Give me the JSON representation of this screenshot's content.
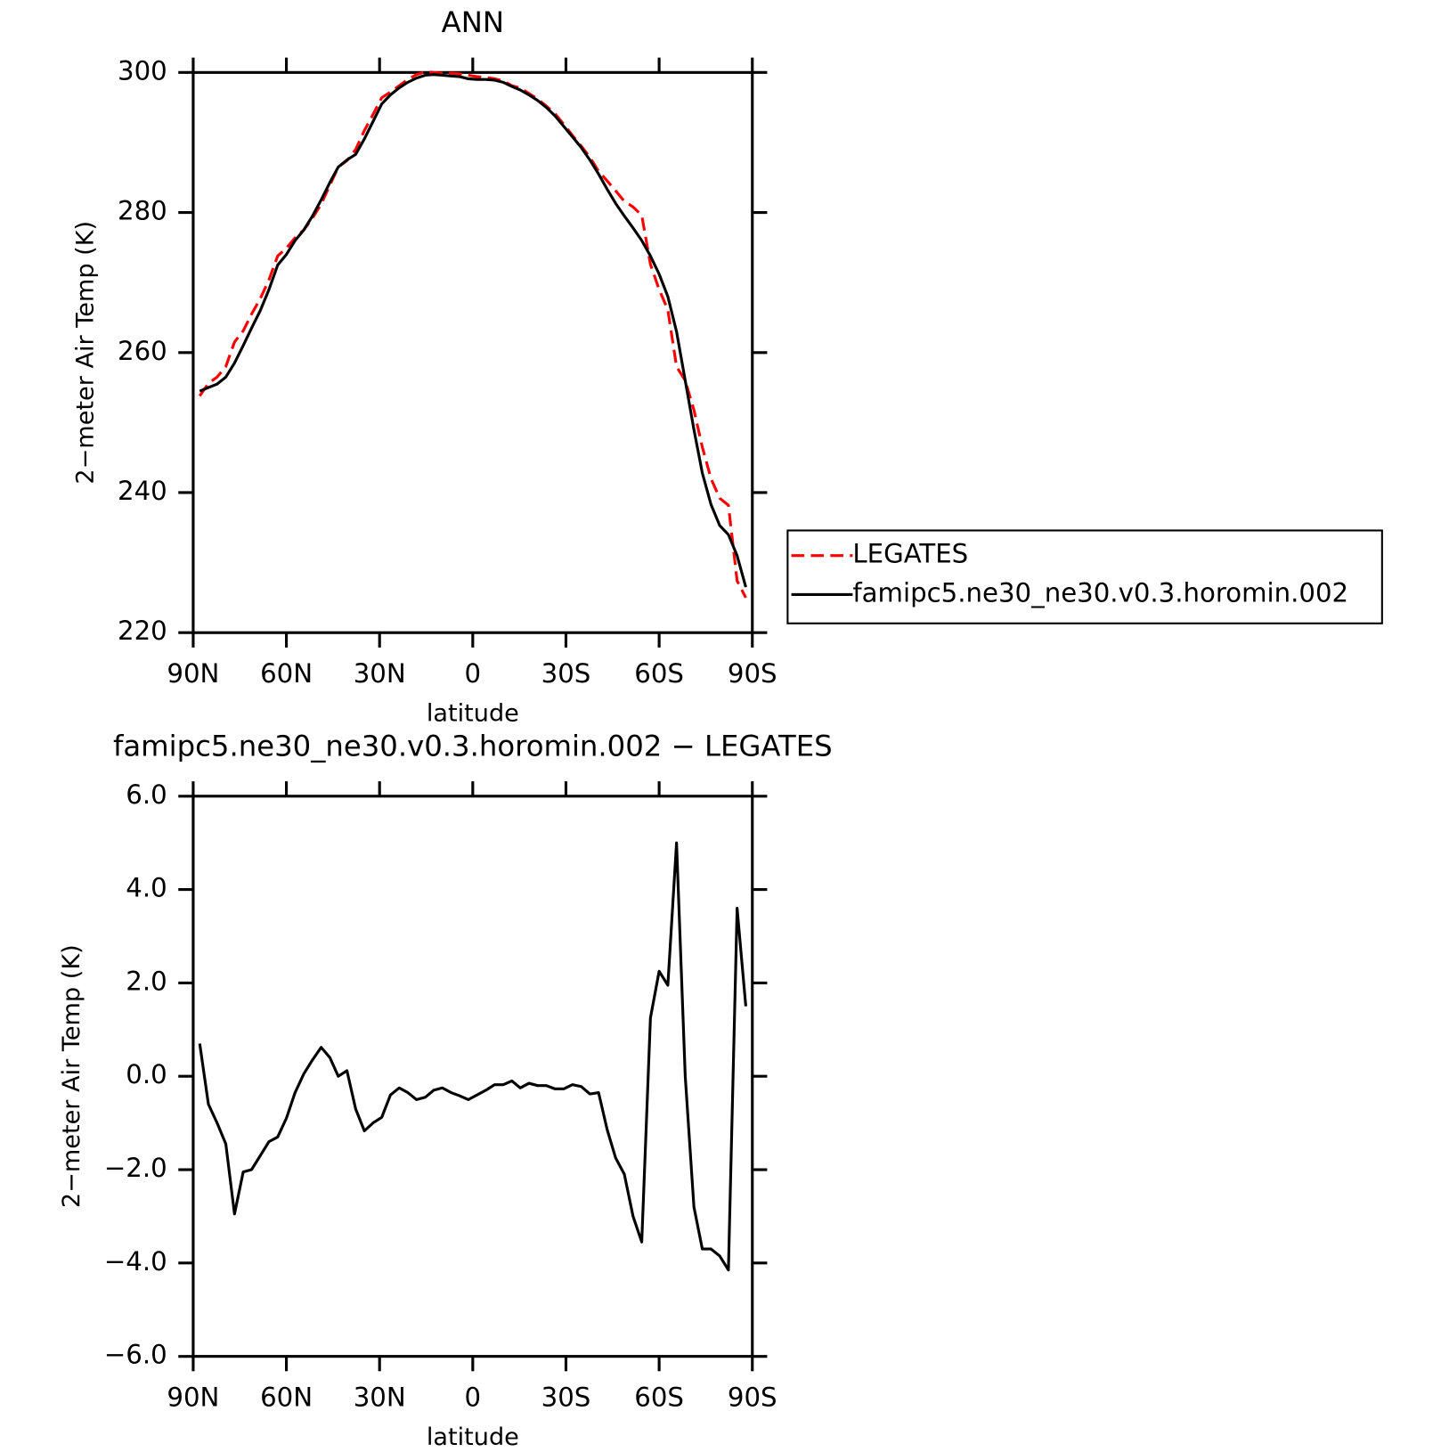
{
  "chart_data": [
    {
      "type": "line",
      "title": "ANN",
      "xlabel": "latitude",
      "ylabel": "2−meter Air Temp (K)",
      "x": [
        87.9,
        85.1,
        82.3,
        79.5,
        76.7,
        73.9,
        71.2,
        68.4,
        65.6,
        62.8,
        60.0,
        57.2,
        54.4,
        51.6,
        48.8,
        46.0,
        43.3,
        40.5,
        37.7,
        34.9,
        32.1,
        29.3,
        26.5,
        23.7,
        20.9,
        18.1,
        15.3,
        12.6,
        9.8,
        7.0,
        4.2,
        1.4,
        -1.4,
        -4.2,
        -7.0,
        -9.8,
        -12.6,
        -15.3,
        -18.1,
        -20.9,
        -23.7,
        -26.5,
        -29.3,
        -32.1,
        -34.9,
        -37.7,
        -40.5,
        -43.3,
        -46.0,
        -48.8,
        -51.6,
        -54.4,
        -57.2,
        -60.0,
        -62.8,
        -65.6,
        -68.4,
        -71.2,
        -73.9,
        -76.7,
        -79.5,
        -82.3,
        -85.1,
        -87.9
      ],
      "xlim": [
        90,
        -90
      ],
      "xticks": [
        {
          "value": 90,
          "label": "90N"
        },
        {
          "value": 60,
          "label": "60N"
        },
        {
          "value": 30,
          "label": "30N"
        },
        0,
        {
          "value": -30,
          "label": "30S"
        },
        {
          "value": -60,
          "label": "60S"
        },
        {
          "value": -90,
          "label": "90S"
        }
      ],
      "ylim": [
        220,
        300
      ],
      "yticks": [
        220,
        240,
        260,
        280,
        300
      ],
      "legend": "outside right",
      "series": [
        {
          "name": "LEGATES",
          "color": "#ff0000",
          "style": "dashed",
          "values": [
            253.8,
            255.6,
            256.5,
            258.0,
            261.5,
            263.1,
            265.5,
            267.7,
            270.4,
            273.8,
            274.9,
            276.4,
            277.5,
            279.2,
            281.2,
            283.9,
            286.5,
            287.4,
            289.0,
            291.7,
            294.0,
            296.4,
            297.2,
            298.1,
            299.0,
            299.7,
            300.1,
            300.0,
            299.9,
            299.9,
            299.8,
            299.6,
            299.4,
            299.3,
            299.1,
            298.8,
            298.1,
            297.8,
            297.0,
            296.2,
            295.2,
            294.1,
            292.6,
            291.0,
            289.5,
            287.9,
            285.9,
            284.5,
            283.1,
            281.6,
            280.8,
            279.6,
            272.6,
            269.0,
            266.1,
            258.0,
            256.0,
            251.8,
            246.5,
            242.0,
            239.2,
            238.2,
            227.4,
            225.0
          ]
        },
        {
          "name": "famipc5.ne30_ne30.v0.3.horomin.002",
          "color": "#000000",
          "style": "solid",
          "values": [
            254.5,
            255.0,
            255.5,
            256.5,
            258.5,
            261.0,
            263.5,
            266.0,
            269.0,
            272.5,
            274.0,
            276.0,
            277.5,
            279.5,
            281.8,
            284.3,
            286.5,
            287.5,
            288.3,
            290.5,
            293.0,
            295.5,
            296.8,
            297.8,
            298.6,
            299.2,
            299.6,
            299.7,
            299.6,
            299.5,
            299.4,
            299.1,
            299.0,
            299.0,
            298.9,
            298.6,
            298.0,
            297.5,
            296.8,
            296.0,
            295.0,
            293.8,
            292.3,
            290.8,
            289.3,
            287.5,
            285.5,
            283.3,
            281.3,
            279.5,
            277.8,
            276.0,
            273.8,
            271.2,
            268.0,
            263.0,
            256.0,
            249.0,
            242.8,
            238.3,
            235.3,
            234.0,
            231.0,
            226.5
          ]
        }
      ]
    },
    {
      "type": "line",
      "title": "famipc5.ne30_ne30.v0.3.horomin.002 − LEGATES",
      "xlabel": "latitude",
      "ylabel": "2−meter Air Temp (K)",
      "x": [
        87.9,
        85.1,
        82.3,
        79.5,
        76.7,
        73.9,
        71.2,
        68.4,
        65.6,
        62.8,
        60.0,
        57.2,
        54.4,
        51.6,
        48.8,
        46.0,
        43.3,
        40.5,
        37.7,
        34.9,
        32.1,
        29.3,
        26.5,
        23.7,
        20.9,
        18.1,
        15.3,
        12.6,
        9.8,
        7.0,
        4.2,
        1.4,
        -1.4,
        -4.2,
        -7.0,
        -9.8,
        -12.6,
        -15.3,
        -18.1,
        -20.9,
        -23.7,
        -26.5,
        -29.3,
        -32.1,
        -34.9,
        -37.7,
        -40.5,
        -43.3,
        -46.0,
        -48.8,
        -51.6,
        -54.4,
        -57.2,
        -60.0,
        -62.8,
        -65.6,
        -68.4,
        -71.2,
        -73.9,
        -76.7,
        -79.5,
        -82.3,
        -85.1,
        -87.9
      ],
      "xlim": [
        90,
        -90
      ],
      "xticks": [
        {
          "value": 90,
          "label": "90N"
        },
        {
          "value": 60,
          "label": "60N"
        },
        {
          "value": 30,
          "label": "30N"
        },
        0,
        {
          "value": -30,
          "label": "30S"
        },
        {
          "value": -60,
          "label": "60S"
        },
        {
          "value": -90,
          "label": "90S"
        }
      ],
      "ylim": [
        -6,
        6
      ],
      "yticks": [
        {
          "value": -6,
          "label": "−6.0"
        },
        {
          "value": -4,
          "label": "−4.0"
        },
        {
          "value": -2,
          "label": "−2.0"
        },
        {
          "value": 0,
          "label": "0.0"
        },
        {
          "value": 2,
          "label": "2.0"
        },
        {
          "value": 4,
          "label": "4.0"
        },
        {
          "value": 6,
          "label": "6.0"
        }
      ],
      "series": [
        {
          "color": "#000000",
          "style": "solid",
          "values": [
            0.7,
            -0.6,
            -1.0,
            -1.45,
            -2.95,
            -2.05,
            -2.0,
            -1.7,
            -1.4,
            -1.3,
            -0.9,
            -0.35,
            0.05,
            0.35,
            0.62,
            0.4,
            0.0,
            0.12,
            -0.7,
            -1.17,
            -1.0,
            -0.88,
            -0.4,
            -0.25,
            -0.35,
            -0.5,
            -0.45,
            -0.3,
            -0.25,
            -0.35,
            -0.42,
            -0.5,
            -0.4,
            -0.3,
            -0.18,
            -0.18,
            -0.1,
            -0.25,
            -0.15,
            -0.2,
            -0.2,
            -0.27,
            -0.27,
            -0.18,
            -0.22,
            -0.38,
            -0.35,
            -1.15,
            -1.75,
            -2.1,
            -3.0,
            -3.55,
            1.25,
            2.25,
            1.95,
            5.0,
            0.0,
            -2.8,
            -3.7,
            -3.7,
            -3.85,
            -4.15,
            3.6,
            1.5
          ]
        }
      ]
    }
  ]
}
